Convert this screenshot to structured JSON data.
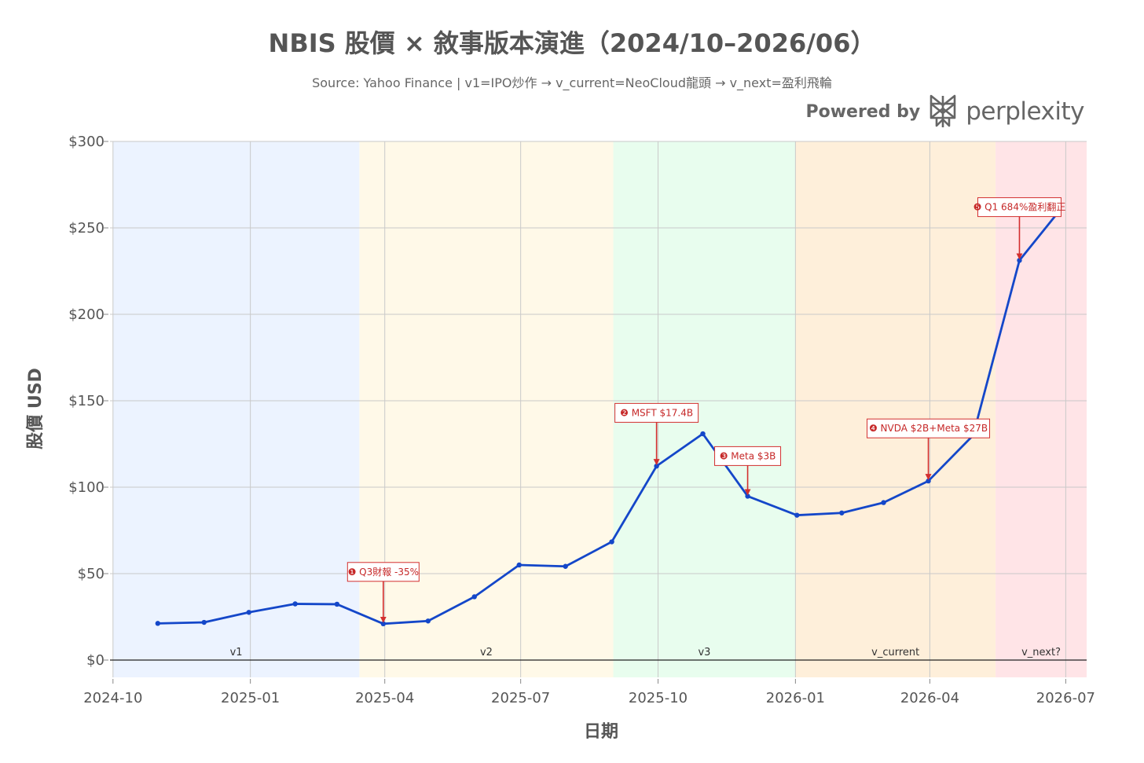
{
  "title": "NBIS 股價 × 敘事版本演進（2024/10–2026/06）",
  "subtitle": "Source: Yahoo Finance | v1=IPO炒作 → v_current=NeoCloud龍頭 → v_next=盈利飛輪",
  "brand": {
    "prefix": "Powered by",
    "name": "perplexity"
  },
  "colors": {
    "line": "#1447c9",
    "annotation": "#d32f2f"
  },
  "chart_data": {
    "type": "line",
    "title": "NBIS 股價 × 敘事版本演進（2024/10–2026/06）",
    "xlabel": "日期",
    "ylabel": "股價 USD",
    "xlim": [
      "2024-09-29",
      "2026-07-15"
    ],
    "ylim": [
      -10,
      300
    ],
    "grid": true,
    "y_ticks": [
      {
        "value": 0,
        "label": "$0"
      },
      {
        "value": 50,
        "label": "$50"
      },
      {
        "value": 100,
        "label": "$100"
      },
      {
        "value": 150,
        "label": "$150"
      },
      {
        "value": 200,
        "label": "$200"
      },
      {
        "value": 250,
        "label": "$250"
      },
      {
        "value": 300,
        "label": "$300"
      }
    ],
    "x_ticks": [
      {
        "date": "2024-10-01",
        "label": "2024-10"
      },
      {
        "date": "2025-01-01",
        "label": "2025-01"
      },
      {
        "date": "2025-04-01",
        "label": "2025-04"
      },
      {
        "date": "2025-07-01",
        "label": "2025-07"
      },
      {
        "date": "2025-10-01",
        "label": "2025-10"
      },
      {
        "date": "2026-01-01",
        "label": "2026-01"
      },
      {
        "date": "2026-04-01",
        "label": "2026-04"
      },
      {
        "date": "2026-07-01",
        "label": "2026-07"
      }
    ],
    "series": [
      {
        "points": [
          {
            "date": "2024-10-31",
            "value": 21.2
          },
          {
            "date": "2024-12-01",
            "value": 21.8
          },
          {
            "date": "2024-12-31",
            "value": 27.6
          },
          {
            "date": "2025-01-31",
            "value": 32.5
          },
          {
            "date": "2025-02-28",
            "value": 32.3
          },
          {
            "date": "2025-03-31",
            "value": 21.0
          },
          {
            "date": "2025-04-30",
            "value": 22.6
          },
          {
            "date": "2025-05-31",
            "value": 36.6
          },
          {
            "date": "2025-06-30",
            "value": 55.0
          },
          {
            "date": "2025-07-31",
            "value": 54.2
          },
          {
            "date": "2025-08-31",
            "value": 68.4
          },
          {
            "date": "2025-09-30",
            "value": 112.2
          },
          {
            "date": "2025-10-31",
            "value": 130.9
          },
          {
            "date": "2025-11-30",
            "value": 94.8
          },
          {
            "date": "2026-01-02",
            "value": 83.8
          },
          {
            "date": "2026-02-01",
            "value": 85.1
          },
          {
            "date": "2026-03-01",
            "value": 91.1
          },
          {
            "date": "2026-03-31",
            "value": 103.6
          },
          {
            "date": "2026-04-30",
            "value": 130.0
          },
          {
            "date": "2026-05-31",
            "value": 231.2
          },
          {
            "date": "2026-06-25",
            "value": 258.0
          }
        ]
      }
    ],
    "eras": [
      {
        "label": "v1",
        "start": "2024-10-01",
        "end": "2025-03-15",
        "color": "#ecf3ff"
      },
      {
        "label": "v2",
        "start": "2025-03-15",
        "end": "2025-09-01",
        "color": "#fff9e8"
      },
      {
        "label": "v3",
        "start": "2025-09-01",
        "end": "2026-01-01",
        "color": "#e8fdee"
      },
      {
        "label": "v_current",
        "start": "2026-01-01",
        "end": "2026-05-15",
        "color": "#feefda"
      },
      {
        "label": "v_next?",
        "start": "2026-05-15",
        "end": "2026-07-15",
        "color": "#ffe4e7"
      }
    ],
    "annotations": [
      {
        "label": "❶ Q3財報 -35%",
        "date": "2025-03-31",
        "value": 21.0,
        "text_value": 51
      },
      {
        "label": "❷ MSFT $17.4B",
        "date": "2025-09-30",
        "value": 112.2,
        "text_value": 143
      },
      {
        "label": "❸ Meta $3B",
        "date": "2025-11-30",
        "value": 94.8,
        "text_value": 118
      },
      {
        "label": "❹ NVDA $2B+Meta $27B",
        "date": "2026-03-31",
        "value": 103.6,
        "text_value": 134
      },
      {
        "label": "❺ Q1 684%盈利翻正",
        "date": "2026-05-31",
        "value": 231.2,
        "text_value": 262
      }
    ]
  }
}
